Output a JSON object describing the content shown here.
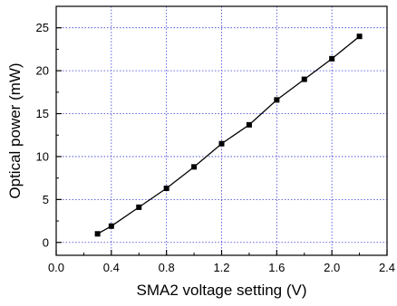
{
  "chart_data": {
    "type": "line",
    "xlabel": "SMA2 voltage setting (V)",
    "ylabel": "Optical power (mW)",
    "xlim": [
      0.0,
      2.4
    ],
    "ylim": [
      -1.5,
      27.5
    ],
    "x_ticks": [
      "0.0",
      "0.4",
      "0.8",
      "1.2",
      "1.6",
      "2.0",
      "2.4"
    ],
    "y_ticks": [
      "0",
      "5",
      "10",
      "15",
      "20",
      "25"
    ],
    "grid": true,
    "grid_style": "dotted",
    "grid_color": "#3a3ad6",
    "line_color": "#000000",
    "marker": "square",
    "series": [
      {
        "x": [
          0.3,
          0.4,
          0.6,
          0.8,
          1.0,
          1.2,
          1.4,
          1.6,
          1.8,
          2.0,
          2.2
        ],
        "y": [
          1.0,
          1.9,
          4.1,
          6.3,
          8.8,
          11.5,
          13.7,
          16.6,
          19.0,
          21.4,
          24.0
        ]
      }
    ]
  }
}
